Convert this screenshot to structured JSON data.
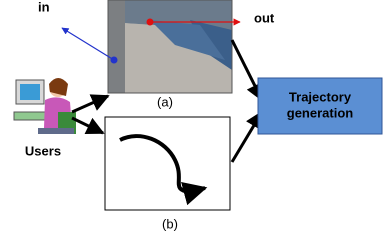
{
  "labels": {
    "in": "in",
    "out": "out",
    "a": "(a)",
    "b": "(b)",
    "users": "Users"
  },
  "box": {
    "lines": [
      "Trajectory",
      "generation"
    ]
  }
}
